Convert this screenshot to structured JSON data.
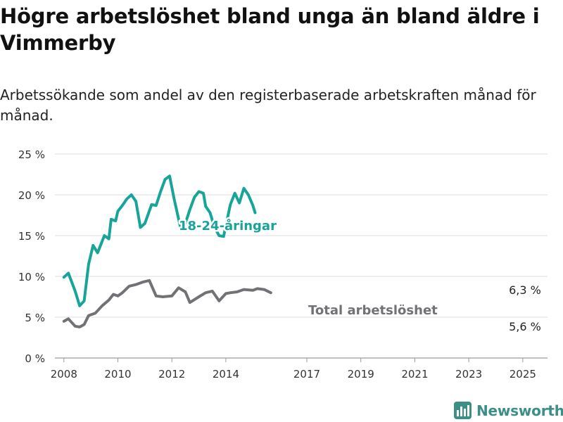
{
  "title": "Högre arbetslöshet bland unga än bland äldre i Vimmerby",
  "subtitle": "Arbetssökande som andel av den registerbaserade arbetskraften månad för månad.",
  "brand": "Newsworthy",
  "chart_data": {
    "type": "line",
    "ylim": [
      0,
      25
    ],
    "xlim": [
      "2007-09",
      "2025-12"
    ],
    "y_ticks": [
      0,
      5,
      10,
      15,
      20,
      25
    ],
    "y_tick_labels": [
      "0 %",
      "5 %",
      "10 %",
      "15 %",
      "20 %",
      "25 %"
    ],
    "x_ticks": [
      "2008-01",
      "2010-01",
      "2012-01",
      "2014-01",
      "2017-01",
      "2019-01",
      "2021-01",
      "2023-01",
      "2025-01"
    ],
    "x_tick_labels": [
      "2008",
      "2010",
      "2012",
      "2014",
      "2017",
      "2019",
      "2021",
      "2023",
      "2025"
    ],
    "grid": true,
    "series": [
      {
        "name": "18-24-åringar",
        "color": "#17a499",
        "end_label": "6,3 %",
        "points": [
          [
            "2008-01",
            9.9
          ],
          [
            "2008-03",
            10.4
          ],
          [
            "2008-06",
            8.2
          ],
          [
            "2008-08",
            6.4
          ],
          [
            "2008-10",
            7.0
          ],
          [
            "2008-12",
            11.5
          ],
          [
            "2009-02",
            13.8
          ],
          [
            "2009-04",
            12.9
          ],
          [
            "2009-07",
            15.0
          ],
          [
            "2009-09",
            14.6
          ],
          [
            "2009-10",
            17.0
          ],
          [
            "2009-12",
            16.8
          ],
          [
            "2010-01",
            18.0
          ],
          [
            "2010-03",
            18.7
          ],
          [
            "2010-05",
            19.5
          ],
          [
            "2010-07",
            20.0
          ],
          [
            "2010-09",
            19.2
          ],
          [
            "2010-11",
            16.0
          ],
          [
            "2011-01",
            16.5
          ],
          [
            "2011-04",
            18.8
          ],
          [
            "2011-06",
            18.7
          ],
          [
            "2011-08",
            20.4
          ],
          [
            "2011-10",
            21.9
          ],
          [
            "2011-12",
            22.3
          ],
          [
            "2012-02",
            19.5
          ],
          [
            "2012-05",
            15.8
          ],
          [
            "2012-07",
            16.5
          ],
          [
            "2012-09",
            18.2
          ],
          [
            "2012-11",
            19.7
          ],
          [
            "2013-01",
            20.4
          ],
          [
            "2013-03",
            20.2
          ],
          [
            "2013-04",
            18.6
          ],
          [
            "2013-06",
            17.8
          ],
          [
            "2013-08",
            16.0
          ],
          [
            "2013-10",
            15.0
          ],
          [
            "2013-12",
            14.9
          ],
          [
            "2014-03",
            18.8
          ],
          [
            "2014-05",
            20.2
          ],
          [
            "2014-07",
            19.0
          ],
          [
            "2014-09",
            20.8
          ],
          [
            "2014-11",
            20.0
          ],
          [
            "2015-01",
            18.7
          ],
          [
            "2015-02",
            17.8
          ]
        ]
      },
      {
        "name": "Total arbetslöshet",
        "color": "#717176",
        "end_label": "5,6 %",
        "points": [
          [
            "2008-01",
            4.5
          ],
          [
            "2008-03",
            4.8
          ],
          [
            "2008-06",
            3.9
          ],
          [
            "2008-08",
            3.8
          ],
          [
            "2008-10",
            4.1
          ],
          [
            "2008-12",
            5.2
          ],
          [
            "2009-03",
            5.5
          ],
          [
            "2009-06",
            6.4
          ],
          [
            "2009-09",
            7.1
          ],
          [
            "2009-11",
            7.8
          ],
          [
            "2010-01",
            7.6
          ],
          [
            "2010-03",
            8.0
          ],
          [
            "2010-06",
            8.8
          ],
          [
            "2010-09",
            9.0
          ],
          [
            "2010-12",
            9.3
          ],
          [
            "2011-03",
            9.5
          ],
          [
            "2011-06",
            7.6
          ],
          [
            "2011-09",
            7.5
          ],
          [
            "2012-01",
            7.6
          ],
          [
            "2012-04",
            8.6
          ],
          [
            "2012-07",
            8.1
          ],
          [
            "2012-09",
            6.8
          ],
          [
            "2013-01",
            7.5
          ],
          [
            "2013-04",
            8.0
          ],
          [
            "2013-07",
            8.2
          ],
          [
            "2013-10",
            7.0
          ],
          [
            "2014-01",
            7.9
          ],
          [
            "2014-03",
            8.0
          ],
          [
            "2014-06",
            8.1
          ],
          [
            "2014-09",
            8.4
          ],
          [
            "2015-01",
            8.3
          ],
          [
            "2015-03",
            8.5
          ],
          [
            "2015-06",
            8.4
          ],
          [
            "2015-09",
            8.0
          ]
        ]
      }
    ]
  }
}
